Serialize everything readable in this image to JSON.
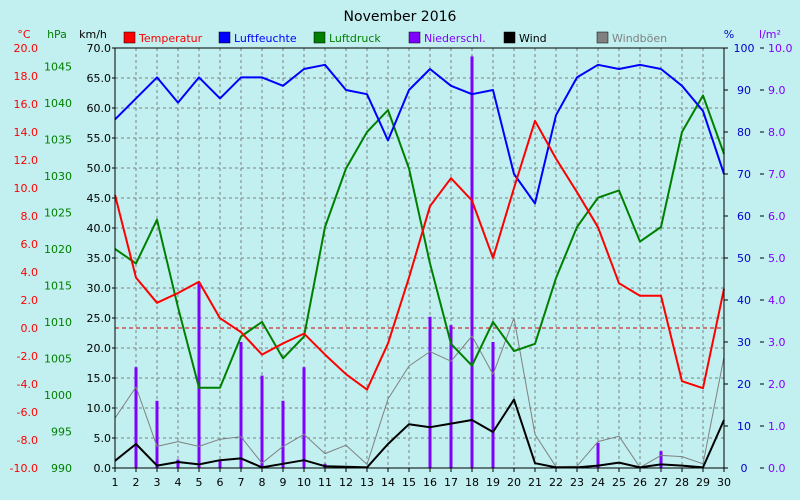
{
  "chart_data": {
    "type": "line",
    "title": "November 2016",
    "x": [
      "1",
      "2",
      "3",
      "4",
      "5",
      "6",
      "7",
      "8",
      "9",
      "10",
      "11",
      "12",
      "13",
      "14",
      "15",
      "16",
      "17",
      "18",
      "19",
      "20",
      "21",
      "22",
      "23",
      "24",
      "25",
      "26",
      "27",
      "28",
      "29",
      "30"
    ],
    "axes": {
      "temp": {
        "unit": "°C",
        "min": -10,
        "max": 20,
        "ticks": [
          "-10.0",
          "-8.0",
          "-6.0",
          "-4.0",
          "-2.0",
          "0.0",
          "2.0",
          "4.0",
          "6.0",
          "8.0",
          "10.0",
          "12.0",
          "14.0",
          "16.0",
          "18.0",
          "20.0"
        ],
        "color": "#ff0000"
      },
      "pressure": {
        "unit": "hPa",
        "min": 990,
        "max": 1047.5,
        "ticks": [
          "990",
          "995",
          "1000",
          "1005",
          "1010",
          "1015",
          "1020",
          "1025",
          "1030",
          "1035",
          "1040",
          "1045"
        ],
        "color": "#008000"
      },
      "wind": {
        "unit": "km/h",
        "min": 0,
        "max": 70,
        "ticks": [
          "0.0",
          "5.0",
          "10.0",
          "15.0",
          "20.0",
          "25.0",
          "30.0",
          "35.0",
          "40.0",
          "45.0",
          "50.0",
          "55.0",
          "60.0",
          "65.0",
          "70.0"
        ],
        "color": "#000000"
      },
      "humidity": {
        "unit": "%",
        "min": 0,
        "max": 100,
        "ticks": [
          "0",
          "10",
          "20",
          "30",
          "40",
          "50",
          "60",
          "70",
          "80",
          "90",
          "100"
        ],
        "color": "#0000cc"
      },
      "precip": {
        "unit": "l/m²",
        "min": 0,
        "max": 10,
        "ticks": [
          "0.0",
          "1.0",
          "2.0",
          "3.0",
          "4.0",
          "5.0",
          "6.0",
          "7.0",
          "8.0",
          "9.0",
          "10.0"
        ],
        "color": "#8000ff"
      }
    },
    "legend": [
      {
        "name": "Temperatur",
        "color": "#ff0000"
      },
      {
        "name": "Luftfeuchte",
        "color": "#0000ff"
      },
      {
        "name": "Luftdruck",
        "color": "#008000"
      },
      {
        "name": "Niederschl.",
        "color": "#8000ff"
      },
      {
        "name": "Wind",
        "color": "#000000"
      },
      {
        "name": "Windböen",
        "color": "#808080"
      }
    ],
    "series": [
      {
        "name": "Temperatur",
        "axis": "temp",
        "kind": "line",
        "color": "#ff0000",
        "values": [
          9.5,
          3.6,
          1.8,
          2.5,
          3.3,
          0.7,
          -0.3,
          -1.9,
          -1.1,
          -0.4,
          -1.9,
          -3.3,
          -4.4,
          -1.1,
          3.6,
          8.7,
          10.7,
          9.1,
          5.0,
          10.0,
          14.8,
          12.1,
          9.7,
          7.2,
          3.2,
          2.3,
          2.3,
          -3.8,
          -4.3,
          2.8
        ]
      },
      {
        "name": "Luftfeuchte",
        "axis": "humidity",
        "kind": "line",
        "color": "#0000ff",
        "values": [
          83,
          88,
          93,
          87,
          93,
          88,
          93,
          93,
          91,
          95,
          96,
          90,
          89,
          78,
          90,
          95,
          91,
          89,
          90,
          70,
          63,
          84,
          93,
          96,
          95,
          96,
          95,
          91,
          85,
          70
        ]
      },
      {
        "name": "Luftdruck",
        "axis": "pressure",
        "kind": "line",
        "color": "#008000",
        "values": [
          1020,
          1018,
          1024,
          1012,
          1001,
          1001,
          1008,
          1010,
          1005,
          1008,
          1023,
          1031,
          1036,
          1039,
          1031,
          1018,
          1007,
          1004,
          1010,
          1006,
          1007,
          1016,
          1023,
          1027,
          1028,
          1021,
          1023,
          1036,
          1041,
          1033
        ]
      },
      {
        "name": "Niederschl.",
        "axis": "precip",
        "kind": "bar",
        "color": "#8000ff",
        "values": [
          0,
          2.4,
          1.6,
          0.2,
          4.4,
          0.2,
          3.0,
          2.2,
          1.6,
          2.4,
          0.1,
          0,
          0,
          0,
          0,
          3.6,
          3.4,
          9.8,
          3.0,
          0,
          0,
          0,
          0,
          0.6,
          0,
          0,
          0.4,
          0,
          0,
          0
        ]
      },
      {
        "name": "Wind",
        "axis": "wind",
        "kind": "line",
        "color": "#000000",
        "values": [
          1.2,
          4.0,
          0.4,
          1.0,
          0.6,
          1.3,
          1.6,
          0.1,
          0.7,
          1.3,
          0.3,
          0.2,
          0.1,
          4.0,
          7.3,
          6.8,
          7.4,
          8.0,
          6.0,
          11.4,
          0.8,
          0.1,
          0.1,
          0.4,
          0.9,
          0.1,
          0.6,
          0.4,
          0.1,
          8.0
        ]
      },
      {
        "name": "Windböen",
        "axis": "wind",
        "kind": "line",
        "color": "#808080",
        "values": [
          8.3,
          13.5,
          3.6,
          4.4,
          3.6,
          4.8,
          5.2,
          0.8,
          3.6,
          5.6,
          2.4,
          3.8,
          0.6,
          11.5,
          17.0,
          19.4,
          17.8,
          22.0,
          15.6,
          25.0,
          5.6,
          0.2,
          0.3,
          4.4,
          5.3,
          0.1,
          2.1,
          1.9,
          0.7,
          18.5
        ]
      }
    ],
    "reference_lines": [
      {
        "axis": "temp",
        "value": 0,
        "color": "#cc0000",
        "style": "dashed"
      }
    ],
    "grid": true,
    "legend_position": "top"
  }
}
